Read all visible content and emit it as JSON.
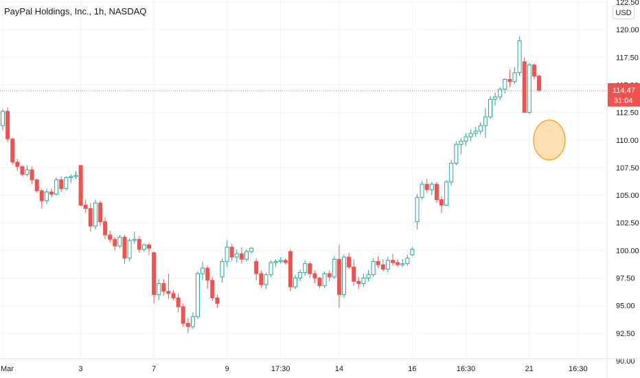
{
  "title": "PayPal Holdings, Inc., 1h, NASDAQ",
  "currency": "USD",
  "price_badge": {
    "price": "114.47",
    "countdown": "31:04"
  },
  "colors": {
    "up": "#26a69a",
    "down": "#ef5350",
    "grid": "#f0f3fa",
    "price_line": "#ef5350",
    "marker_fill": "#ffe0b2",
    "marker_stroke": "#ff9800"
  },
  "chart_data": {
    "type": "candlestick",
    "ylim": [
      90,
      122.5
    ],
    "y_ticks": [
      "90.00",
      "92.50",
      "95.00",
      "97.50",
      "100.00",
      "102.50",
      "105.00",
      "107.50",
      "110.00",
      "112.50",
      "115.00",
      "117.50",
      "120.00",
      "122.50"
    ],
    "x_ticks": [
      {
        "label": "Mar",
        "index": 0
      },
      {
        "label": "3",
        "index": 16
      },
      {
        "label": "7",
        "index": 31
      },
      {
        "label": "9",
        "index": 46
      },
      {
        "label": "17:30",
        "index": 57
      },
      {
        "label": "14",
        "index": 69
      },
      {
        "label": "16",
        "index": 84
      },
      {
        "label": "16:30",
        "index": 95
      },
      {
        "label": "21",
        "index": 108
      },
      {
        "label": "16:30",
        "index": 118
      }
    ],
    "last_price": 114.47,
    "candles": [
      [
        111.3,
        112.8,
        110.9,
        112.6
      ],
      [
        112.6,
        113.0,
        109.8,
        110.1
      ],
      [
        110.1,
        110.2,
        107.8,
        108.0
      ],
      [
        108.0,
        108.3,
        107.2,
        107.6
      ],
      [
        107.6,
        107.7,
        106.7,
        106.9
      ],
      [
        106.9,
        107.7,
        106.7,
        107.3
      ],
      [
        107.3,
        107.6,
        106.0,
        106.4
      ],
      [
        106.4,
        106.5,
        105.2,
        105.4
      ],
      [
        105.4,
        105.6,
        103.8,
        104.5
      ],
      [
        104.5,
        105.6,
        104.2,
        105.3
      ],
      [
        105.3,
        105.6,
        104.8,
        105.1
      ],
      [
        105.1,
        106.6,
        105.0,
        106.4
      ],
      [
        106.4,
        106.7,
        105.3,
        105.6
      ],
      [
        105.6,
        106.7,
        105.5,
        106.6
      ],
      [
        106.6,
        106.9,
        106.1,
        106.7
      ],
      [
        106.7,
        107.2,
        106.5,
        106.8
      ],
      [
        107.7,
        107.7,
        104.0,
        104.1
      ],
      [
        104.1,
        104.6,
        103.4,
        103.8
      ],
      [
        103.8,
        104.3,
        101.7,
        102.2
      ],
      [
        102.2,
        104.6,
        101.9,
        104.3
      ],
      [
        104.3,
        104.5,
        102.2,
        102.6
      ],
      [
        102.6,
        103.0,
        101.0,
        101.4
      ],
      [
        101.4,
        101.8,
        100.7,
        101.0
      ],
      [
        101.0,
        101.2,
        100.0,
        100.4
      ],
      [
        100.4,
        101.4,
        100.2,
        101.2
      ],
      [
        101.2,
        101.4,
        98.8,
        99.3
      ],
      [
        99.3,
        101.1,
        99.0,
        100.9
      ],
      [
        100.9,
        101.7,
        100.6,
        101.0
      ],
      [
        101.0,
        101.3,
        99.8,
        100.1
      ],
      [
        100.1,
        100.6,
        99.9,
        100.5
      ],
      [
        100.5,
        100.7,
        99.6,
        100.2
      ],
      [
        99.8,
        99.9,
        95.2,
        96.0
      ],
      [
        96.0,
        97.4,
        95.5,
        97.0
      ],
      [
        97.0,
        97.4,
        95.9,
        96.3
      ],
      [
        96.3,
        97.9,
        95.6,
        96.1
      ],
      [
        96.1,
        96.4,
        95.5,
        95.7
      ],
      [
        95.7,
        96.1,
        94.4,
        94.9
      ],
      [
        94.9,
        95.2,
        93.1,
        93.4
      ],
      [
        93.4,
        93.9,
        92.5,
        93.1
      ],
      [
        93.1,
        94.4,
        92.9,
        94.0
      ],
      [
        94.0,
        98.1,
        93.8,
        97.9
      ],
      [
        97.9,
        99.0,
        97.3,
        98.4
      ],
      [
        98.4,
        98.6,
        96.5,
        97.3
      ],
      [
        97.3,
        97.6,
        95.4,
        95.7
      ],
      [
        95.7,
        96.0,
        94.8,
        95.2
      ],
      [
        97.6,
        99.3,
        97.1,
        99.0
      ],
      [
        99.0,
        100.9,
        98.5,
        100.3
      ],
      [
        100.3,
        100.6,
        99.0,
        99.4
      ],
      [
        99.4,
        100.1,
        98.9,
        99.7
      ],
      [
        99.7,
        100.3,
        98.8,
        99.2
      ],
      [
        99.2,
        100.1,
        99.0,
        99.9
      ],
      [
        99.9,
        100.3,
        99.7,
        100.2
      ],
      [
        99.0,
        99.3,
        97.3,
        97.9
      ],
      [
        97.9,
        98.2,
        96.6,
        96.9
      ],
      [
        96.9,
        98.0,
        96.5,
        97.8
      ],
      [
        97.8,
        99.1,
        97.6,
        98.9
      ],
      [
        98.9,
        99.2,
        98.5,
        99.0
      ],
      [
        99.0,
        99.4,
        98.8,
        99.1
      ],
      [
        99.1,
        99.3,
        98.7,
        98.9
      ],
      [
        99.9,
        100.1,
        96.3,
        96.7
      ],
      [
        96.7,
        97.8,
        96.5,
        97.5
      ],
      [
        97.5,
        98.3,
        97.2,
        98.0
      ],
      [
        98.0,
        99.1,
        97.7,
        98.8
      ],
      [
        98.8,
        99.0,
        97.5,
        97.9
      ],
      [
        97.9,
        98.2,
        97.0,
        97.5
      ],
      [
        97.5,
        97.6,
        96.6,
        96.8
      ],
      [
        96.8,
        98.1,
        96.6,
        97.9
      ],
      [
        97.9,
        98.2,
        97.2,
        97.6
      ],
      [
        97.6,
        99.5,
        97.4,
        99.2
      ],
      [
        99.2,
        100.5,
        94.8,
        96.0
      ],
      [
        96.0,
        99.6,
        95.7,
        99.4
      ],
      [
        99.4,
        99.8,
        98.3,
        98.5
      ],
      [
        98.5,
        99.2,
        96.8,
        97.2
      ],
      [
        97.2,
        97.6,
        96.5,
        97.0
      ],
      [
        97.0,
        97.9,
        96.7,
        97.5
      ],
      [
        97.5,
        98.2,
        97.2,
        97.8
      ],
      [
        97.8,
        99.3,
        97.6,
        99.0
      ],
      [
        99.0,
        99.5,
        98.4,
        98.7
      ],
      [
        98.7,
        99.2,
        98.1,
        98.3
      ],
      [
        98.3,
        99.4,
        98.0,
        99.1
      ],
      [
        99.1,
        99.7,
        98.6,
        98.9
      ],
      [
        98.9,
        99.2,
        98.5,
        98.7
      ],
      [
        98.7,
        99.2,
        98.5,
        98.8
      ],
      [
        98.8,
        99.6,
        98.6,
        99.3
      ],
      [
        99.6,
        100.3,
        99.5,
        100.1
      ],
      [
        102.6,
        105.1,
        101.9,
        104.8
      ],
      [
        104.8,
        106.3,
        104.6,
        106.0
      ],
      [
        106.0,
        106.5,
        105.2,
        105.5
      ],
      [
        105.5,
        106.2,
        105.0,
        106.0
      ],
      [
        106.0,
        106.2,
        104.3,
        104.6
      ],
      [
        104.6,
        104.9,
        103.4,
        104.1
      ],
      [
        104.1,
        106.4,
        104.0,
        106.2
      ],
      [
        106.2,
        108.2,
        105.9,
        107.9
      ],
      [
        107.9,
        109.9,
        107.7,
        109.6
      ],
      [
        109.6,
        110.2,
        108.7,
        109.9
      ],
      [
        109.9,
        110.6,
        109.5,
        110.3
      ],
      [
        110.3,
        111.0,
        109.9,
        110.6
      ],
      [
        110.6,
        111.2,
        110.3,
        110.8
      ],
      [
        110.8,
        111.6,
        110.5,
        111.3
      ],
      [
        111.3,
        112.9,
        110.2,
        112.1
      ],
      [
        112.1,
        114.0,
        111.9,
        113.7
      ],
      [
        113.7,
        114.3,
        113.1,
        113.9
      ],
      [
        113.9,
        114.8,
        113.6,
        114.6
      ],
      [
        114.6,
        115.6,
        114.2,
        115.5
      ],
      [
        115.5,
        116.4,
        114.8,
        115.3
      ],
      [
        115.3,
        116.6,
        115.1,
        116.1
      ],
      [
        116.1,
        119.4,
        115.8,
        119.0
      ],
      [
        117.1,
        117.5,
        112.5,
        112.5
      ],
      [
        112.5,
        117.0,
        112.4,
        116.8
      ],
      [
        116.8,
        116.9,
        115.5,
        115.8
      ],
      [
        115.8,
        115.9,
        114.4,
        114.5
      ]
    ]
  },
  "marker": {
    "price": 110
  }
}
